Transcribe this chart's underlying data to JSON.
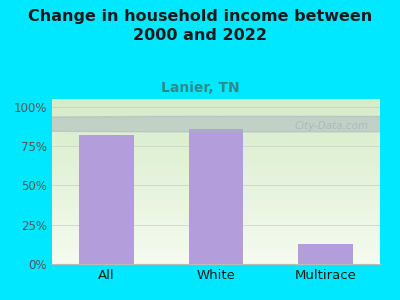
{
  "categories": [
    "All",
    "White",
    "Multirace"
  ],
  "values": [
    82,
    86,
    13
  ],
  "bar_color": "#b39ddb",
  "title_line1": "Change in household income between",
  "title_line2": "2000 and 2022",
  "subtitle": "Lanier, TN",
  "yticks": [
    0,
    25,
    50,
    75,
    100
  ],
  "ytick_labels": [
    "0%",
    "25%",
    "50%",
    "75%",
    "100%"
  ],
  "ylim": [
    0,
    105
  ],
  "background_color": "#00e8ff",
  "title_color": "#1a1a1a",
  "subtitle_color": "#2e8b8b",
  "tick_label_color": "#555555",
  "x_label_color": "#1a1a1a",
  "watermark_text": "City-Data.com",
  "watermark_color": "#aab5be",
  "bar_width": 0.5,
  "title_fontsize": 11.5,
  "subtitle_fontsize": 10,
  "grad_top_color": "#d6ecc8",
  "grad_bottom_color": "#f5fbf0"
}
